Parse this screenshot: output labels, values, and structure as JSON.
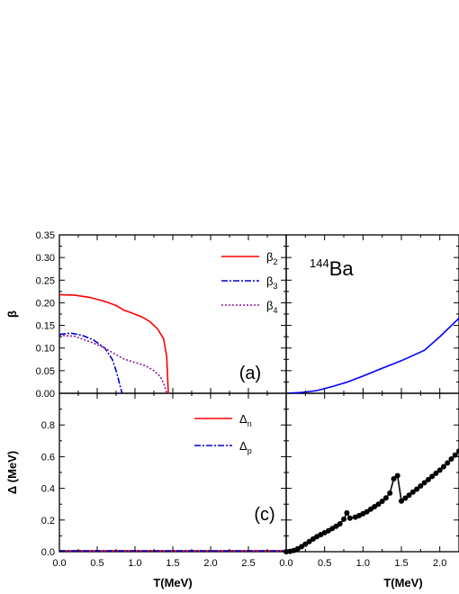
{
  "chart_data": [
    {
      "panel": "a",
      "type": "line",
      "panel_tag": "(a)",
      "xlabel": "",
      "ylabel": "β",
      "xlim": [
        0.0,
        3.0
      ],
      "ylim": [
        0.0,
        0.35
      ],
      "x_ticks": [
        "0.0",
        "0.5",
        "1.0",
        "1.5",
        "2.0",
        "2.5",
        ""
      ],
      "y_ticks": [
        "0.00",
        "0.05",
        "0.10",
        "0.15",
        "0.20",
        "0.25",
        "0.30",
        "0.35"
      ],
      "series": [
        {
          "name": "β2",
          "base": "β",
          "sub": "2",
          "color": "#ff0000",
          "dash": "",
          "points": [
            [
              0,
              0.218
            ],
            [
              0.2,
              0.217
            ],
            [
              0.4,
              0.212
            ],
            [
              0.6,
              0.203
            ],
            [
              0.75,
              0.194
            ],
            [
              0.85,
              0.184
            ],
            [
              0.95,
              0.178
            ],
            [
              1.1,
              0.168
            ],
            [
              1.2,
              0.158
            ],
            [
              1.3,
              0.142
            ],
            [
              1.38,
              0.12
            ],
            [
              1.42,
              0.08
            ],
            [
              1.44,
              0.0
            ]
          ]
        },
        {
          "name": "β3",
          "base": "β",
          "sub": "3",
          "color": "#0000cc",
          "dash": "7,2,2,2",
          "points": [
            [
              0,
              0.13
            ],
            [
              0.15,
              0.133
            ],
            [
              0.3,
              0.128
            ],
            [
              0.45,
              0.118
            ],
            [
              0.6,
              0.1
            ],
            [
              0.7,
              0.075
            ],
            [
              0.76,
              0.045
            ],
            [
              0.8,
              0.018
            ],
            [
              0.83,
              0.0
            ]
          ]
        },
        {
          "name": "β4",
          "base": "β",
          "sub": "4",
          "color": "#8b1a9b",
          "dash": "2,2",
          "points": [
            [
              0,
              0.128
            ],
            [
              0.2,
              0.126
            ],
            [
              0.45,
              0.111
            ],
            [
              0.6,
              0.1
            ],
            [
              0.7,
              0.09
            ],
            [
              0.85,
              0.076
            ],
            [
              1.0,
              0.068
            ],
            [
              1.15,
              0.06
            ],
            [
              1.25,
              0.05
            ],
            [
              1.33,
              0.038
            ],
            [
              1.38,
              0.022
            ],
            [
              1.42,
              0.0
            ]
          ]
        }
      ]
    },
    {
      "panel": "b",
      "type": "line",
      "panel_tag": "",
      "nucleus": {
        "mass": "144",
        "symbol": "Ba"
      },
      "xlim": [
        0.0,
        2.25
      ],
      "ylim": [
        0.0,
        0.35
      ],
      "x_ticks": [],
      "y_ticks": [],
      "series": [
        {
          "name": "",
          "color": "#0000ff",
          "dash": "",
          "points": [
            [
              0,
              0.0
            ],
            [
              0.2,
              0.002
            ],
            [
              0.4,
              0.006
            ],
            [
              0.6,
              0.015
            ],
            [
              0.8,
              0.025
            ],
            [
              1.0,
              0.038
            ],
            [
              1.2,
              0.052
            ],
            [
              1.5,
              0.072
            ],
            [
              1.8,
              0.095
            ],
            [
              2.0,
              0.125
            ],
            [
              2.25,
              0.166
            ]
          ]
        }
      ]
    },
    {
      "panel": "c",
      "type": "line",
      "panel_tag": "(c)",
      "xlabel": "T(MeV)",
      "ylabel": "Δ (MeV)",
      "xlim": [
        0.0,
        3.0
      ],
      "ylim": [
        0.0,
        1.0
      ],
      "x_ticks": [
        "0.0",
        "0.5",
        "1.0",
        "1.5",
        "2.0",
        "2.5",
        ""
      ],
      "y_ticks": [
        "0.0",
        "0.2",
        "0.4",
        "0.6",
        "0.8",
        ""
      ],
      "series": [
        {
          "name": "Δn",
          "base": "Δ",
          "sub": "n",
          "color": "#ff0000",
          "dash": "",
          "points": [
            [
              0,
              0.005
            ],
            [
              3.0,
              0.005
            ]
          ]
        },
        {
          "name": "Δp",
          "base": "Δ",
          "sub": "p",
          "color": "#0000cc",
          "dash": "7,2,2,2",
          "points": [
            [
              0,
              0.005
            ],
            [
              3.0,
              0.005
            ]
          ]
        }
      ]
    },
    {
      "panel": "d",
      "type": "line",
      "panel_tag": "",
      "xlabel": "T(MeV)",
      "xlim": [
        0.0,
        2.25
      ],
      "ylim": [
        0.0,
        1.0
      ],
      "x_ticks": [
        "0.0",
        "0.5",
        "1.0",
        "1.5",
        "2.0"
      ],
      "y_ticks": [],
      "series": [
        {
          "name": "",
          "color": "#000000",
          "dash": "",
          "markers": true,
          "points": [
            [
              0.0,
              0.0
            ],
            [
              0.05,
              0.002
            ],
            [
              0.1,
              0.008
            ],
            [
              0.15,
              0.018
            ],
            [
              0.2,
              0.032
            ],
            [
              0.25,
              0.048
            ],
            [
              0.3,
              0.064
            ],
            [
              0.35,
              0.08
            ],
            [
              0.4,
              0.095
            ],
            [
              0.45,
              0.108
            ],
            [
              0.5,
              0.12
            ],
            [
              0.55,
              0.132
            ],
            [
              0.6,
              0.146
            ],
            [
              0.65,
              0.16
            ],
            [
              0.7,
              0.176
            ],
            [
              0.75,
              0.205
            ],
            [
              0.79,
              0.245
            ],
            [
              0.83,
              0.212
            ],
            [
              0.9,
              0.218
            ],
            [
              0.95,
              0.228
            ],
            [
              1.0,
              0.24
            ],
            [
              1.05,
              0.252
            ],
            [
              1.1,
              0.268
            ],
            [
              1.15,
              0.284
            ],
            [
              1.2,
              0.3
            ],
            [
              1.25,
              0.318
            ],
            [
              1.3,
              0.34
            ],
            [
              1.35,
              0.37
            ],
            [
              1.4,
              0.46
            ],
            [
              1.45,
              0.48
            ],
            [
              1.5,
              0.32
            ],
            [
              1.55,
              0.338
            ],
            [
              1.6,
              0.356
            ],
            [
              1.65,
              0.376
            ],
            [
              1.7,
              0.395
            ],
            [
              1.75,
              0.415
            ],
            [
              1.8,
              0.435
            ],
            [
              1.85,
              0.455
            ],
            [
              1.9,
              0.475
            ],
            [
              1.95,
              0.495
            ],
            [
              2.0,
              0.515
            ],
            [
              2.05,
              0.537
            ],
            [
              2.1,
              0.56
            ],
            [
              2.15,
              0.585
            ],
            [
              2.2,
              0.61
            ],
            [
              2.25,
              0.635
            ]
          ]
        }
      ]
    }
  ]
}
